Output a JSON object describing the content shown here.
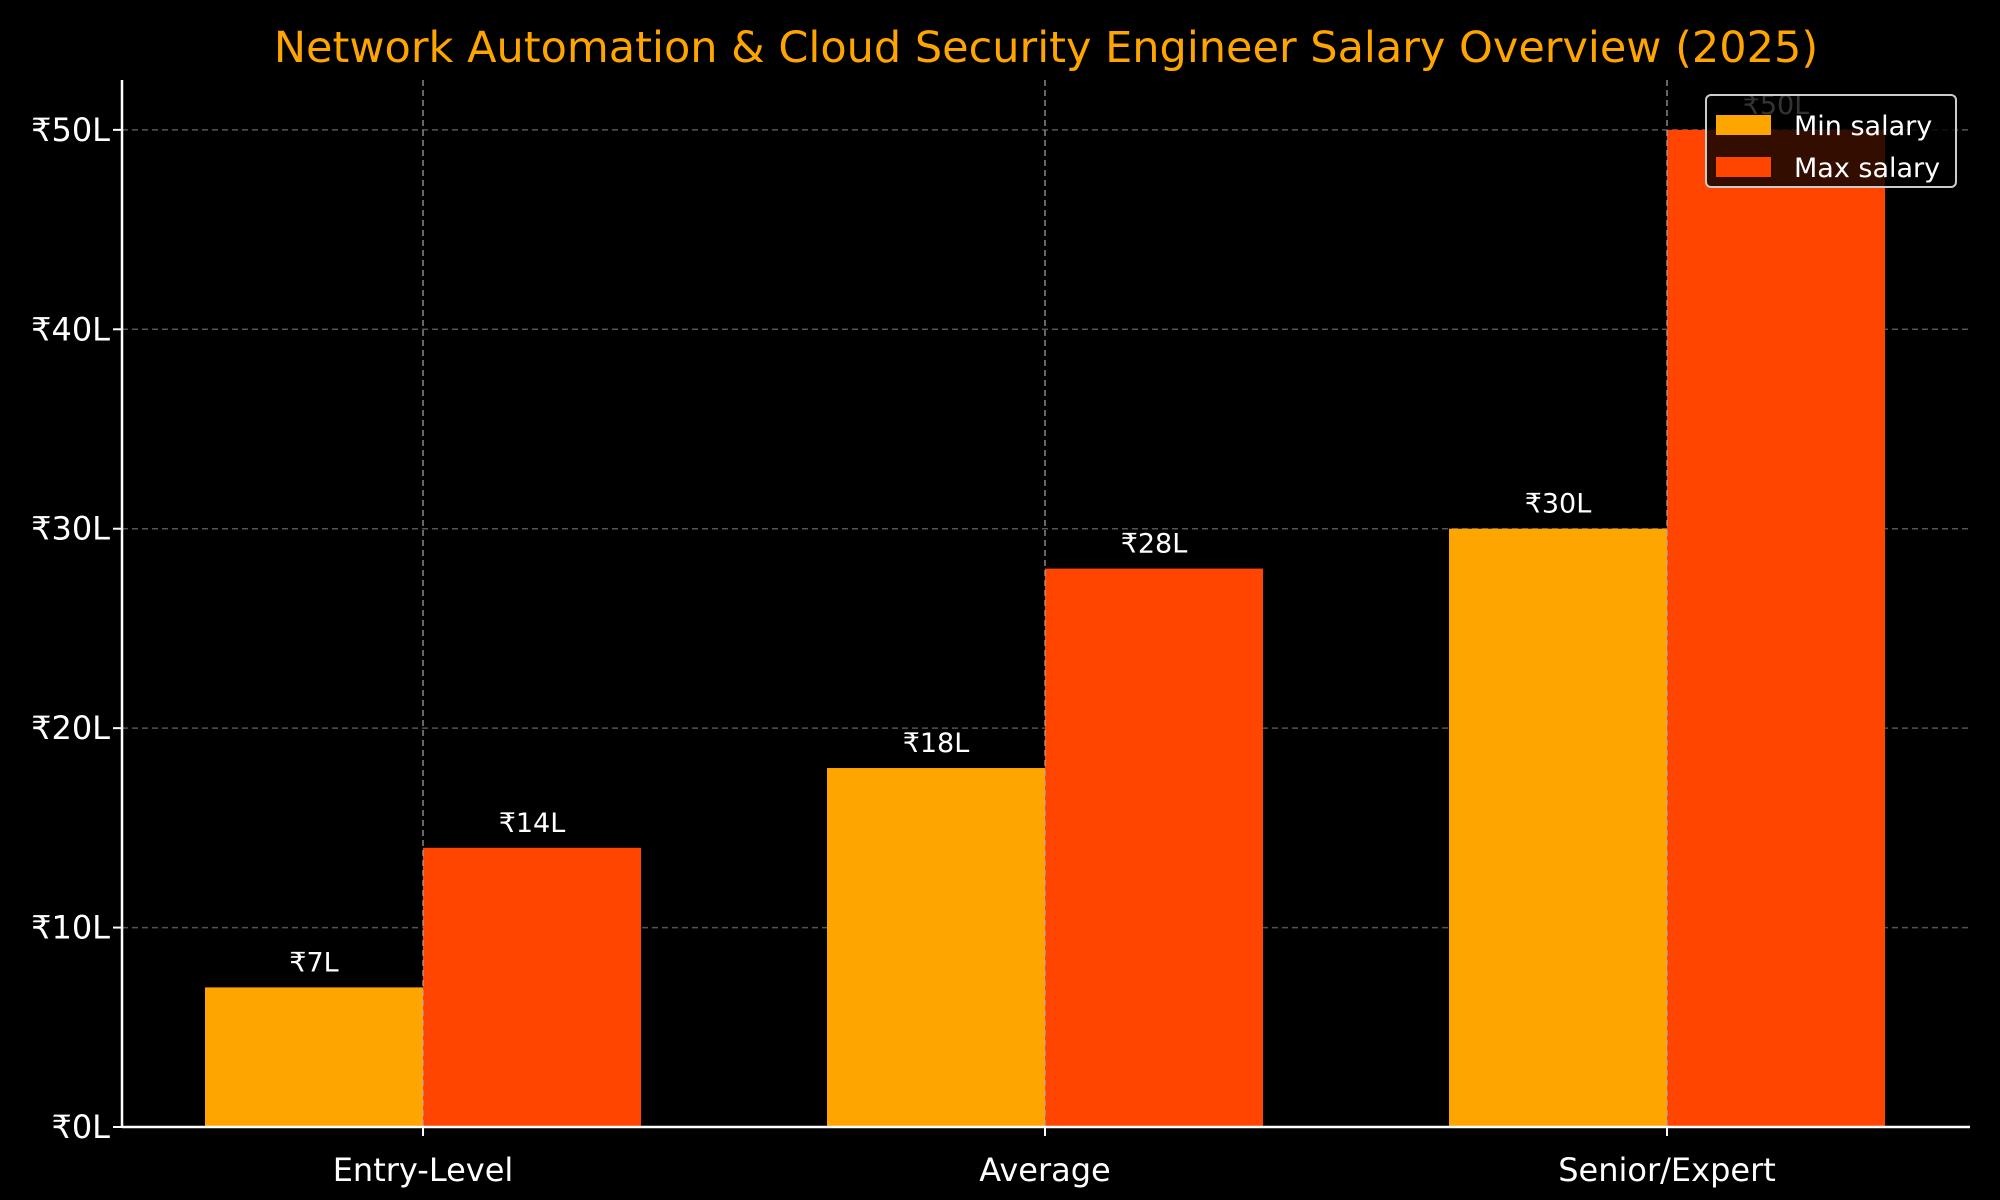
{
  "chart_data": {
    "type": "bar",
    "title": "Network Automation & Cloud Security Engineer Salary Overview (2025)",
    "xlabel": "",
    "ylabel": "",
    "categories": [
      "Entry-Level",
      "Average",
      "Senior/Expert"
    ],
    "series": [
      {
        "name": "Min salary",
        "color": "#FFA500",
        "values": [
          7,
          18,
          30
        ],
        "labels": [
          "₹7L",
          "₹18L",
          "₹30L"
        ]
      },
      {
        "name": "Max salary",
        "color": "#FF4500",
        "values": [
          14,
          28,
          50
        ],
        "labels": [
          "₹14L",
          "₹28L",
          "₹50L"
        ]
      }
    ],
    "ylim": [
      0,
      52.5
    ],
    "yticks": [
      0,
      10,
      20,
      30,
      40,
      50
    ],
    "ytick_labels": [
      "₹0L",
      "₹10L",
      "₹20L",
      "₹30L",
      "₹40L",
      "₹50L"
    ],
    "grid": true,
    "legend": "top-right",
    "background": "#000000",
    "title_color": "#FFA500"
  }
}
